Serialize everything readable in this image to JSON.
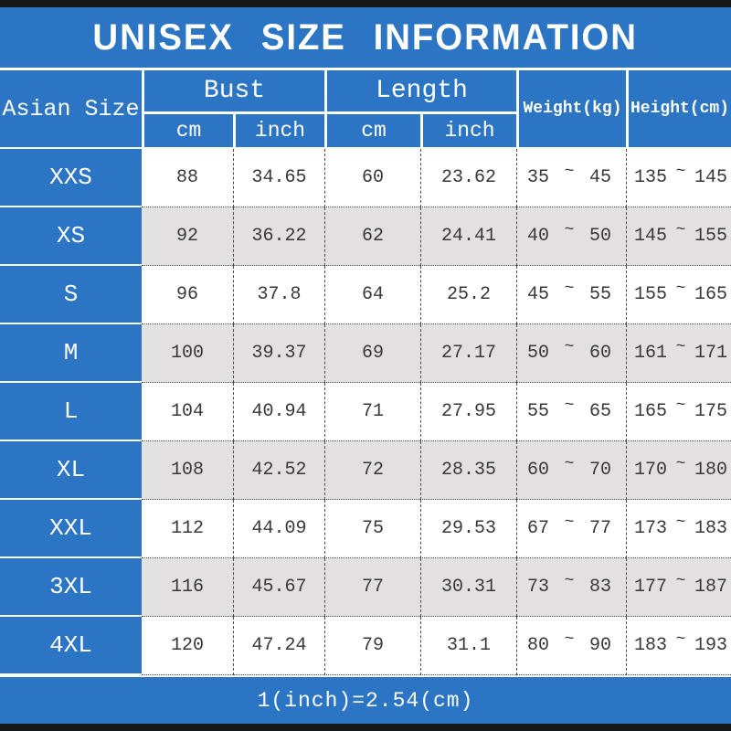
{
  "title": "UNISEX SIZE INFORMATION",
  "footer_note": "1(inch)=2.54(cm)",
  "colors": {
    "accent_blue": "#2b75c4",
    "bar_black": "#171717",
    "row_alt_gray": "#e2e0e0",
    "text_dark": "#383838",
    "text_white": "#ffffff"
  },
  "table": {
    "corner_header": "Asian Size",
    "tilde": "~",
    "groups": [
      {
        "label": "Bust",
        "sub": [
          "cm",
          "inch"
        ]
      },
      {
        "label": "Length",
        "sub": [
          "cm",
          "inch"
        ]
      }
    ],
    "single_headers": {
      "weight": "Weight(kg)",
      "height": "Height(cm)"
    },
    "rows": [
      {
        "size": "XXS",
        "bust_cm": "88",
        "bust_inch": "34.65",
        "length_cm": "60",
        "length_inch": "23.62",
        "weight_min": "35",
        "weight_max": "45",
        "height_min": "135",
        "height_max": "145"
      },
      {
        "size": "XS",
        "bust_cm": "92",
        "bust_inch": "36.22",
        "length_cm": "62",
        "length_inch": "24.41",
        "weight_min": "40",
        "weight_max": "50",
        "height_min": "145",
        "height_max": "155"
      },
      {
        "size": "S",
        "bust_cm": "96",
        "bust_inch": "37.8",
        "length_cm": "64",
        "length_inch": "25.2",
        "weight_min": "45",
        "weight_max": "55",
        "height_min": "155",
        "height_max": "165"
      },
      {
        "size": "M",
        "bust_cm": "100",
        "bust_inch": "39.37",
        "length_cm": "69",
        "length_inch": "27.17",
        "weight_min": "50",
        "weight_max": "60",
        "height_min": "161",
        "height_max": "171"
      },
      {
        "size": "L",
        "bust_cm": "104",
        "bust_inch": "40.94",
        "length_cm": "71",
        "length_inch": "27.95",
        "weight_min": "55",
        "weight_max": "65",
        "height_min": "165",
        "height_max": "175"
      },
      {
        "size": "XL",
        "bust_cm": "108",
        "bust_inch": "42.52",
        "length_cm": "72",
        "length_inch": "28.35",
        "weight_min": "60",
        "weight_max": "70",
        "height_min": "170",
        "height_max": "180"
      },
      {
        "size": "XXL",
        "bust_cm": "112",
        "bust_inch": "44.09",
        "length_cm": "75",
        "length_inch": "29.53",
        "weight_min": "67",
        "weight_max": "77",
        "height_min": "173",
        "height_max": "183"
      },
      {
        "size": "3XL",
        "bust_cm": "116",
        "bust_inch": "45.67",
        "length_cm": "77",
        "length_inch": "30.31",
        "weight_min": "73",
        "weight_max": "83",
        "height_min": "177",
        "height_max": "187"
      },
      {
        "size": "4XL",
        "bust_cm": "120",
        "bust_inch": "47.24",
        "length_cm": "79",
        "length_inch": "31.1",
        "weight_min": "80",
        "weight_max": "90",
        "height_min": "183",
        "height_max": "193"
      }
    ]
  }
}
